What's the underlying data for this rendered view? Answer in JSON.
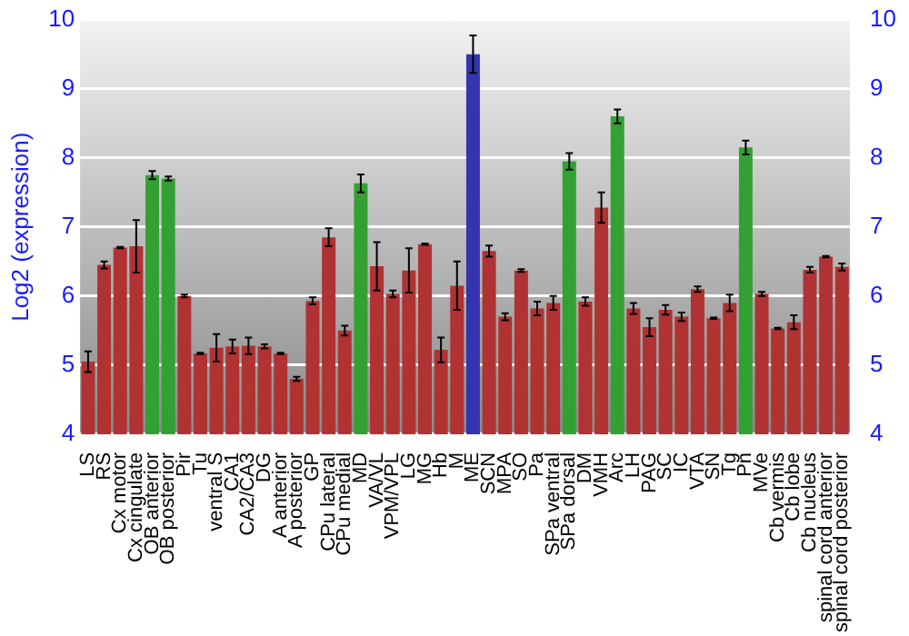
{
  "chart_data": {
    "type": "bar",
    "ylabel": "Log2 (expression)",
    "categories": [
      "LS",
      "RS",
      "Cx motor",
      "Cx cingulate",
      "OB anterior",
      "OB posterior",
      "Pir",
      "Tu",
      "ventral S",
      "CA1",
      "CA2/CA3",
      "DG",
      "A anterior",
      "A posterior",
      "GP",
      "CPu lateral",
      "CPu medial",
      "MD",
      "VA/VL",
      "VPM/VPL",
      "LG",
      "MG",
      "Hb",
      "M",
      "ME",
      "SCN",
      "MPA",
      "SO",
      "Pa",
      "SPa ventral",
      "SPa dorsal",
      "DM",
      "VMH",
      "Arc",
      "LH",
      "PAG",
      "SC",
      "IC",
      "VTA",
      "SN",
      "Tg",
      "Pn",
      "MVe",
      "Cb vermis",
      "Cb lobe",
      "Cb nucleus",
      "spinal cord anterior",
      "spinal cord posterior"
    ],
    "values": [
      5.05,
      6.45,
      6.7,
      6.72,
      7.75,
      7.7,
      6.0,
      5.17,
      5.25,
      5.27,
      5.28,
      5.27,
      5.17,
      4.8,
      5.93,
      6.85,
      5.5,
      7.63,
      6.43,
      6.03,
      6.37,
      6.75,
      5.22,
      6.15,
      9.5,
      6.65,
      5.7,
      6.37,
      5.82,
      5.9,
      7.95,
      5.92,
      7.28,
      8.6,
      5.82,
      5.55,
      5.8,
      5.7,
      6.1,
      5.68,
      5.9,
      8.15,
      6.03,
      5.53,
      5.62,
      6.38,
      6.57,
      6.42
    ],
    "errors": [
      0.15,
      0.05,
      0.01,
      0.38,
      0.06,
      0.03,
      0.02,
      0.01,
      0.2,
      0.1,
      0.12,
      0.03,
      0.01,
      0.03,
      0.05,
      0.13,
      0.07,
      0.13,
      0.35,
      0.05,
      0.32,
      0.01,
      0.18,
      0.35,
      0.27,
      0.08,
      0.05,
      0.02,
      0.1,
      0.1,
      0.12,
      0.06,
      0.22,
      0.1,
      0.08,
      0.13,
      0.07,
      0.06,
      0.04,
      0.01,
      0.12,
      0.1,
      0.03,
      0.01,
      0.1,
      0.04,
      0.01,
      0.05
    ],
    "colors": [
      "#b03232",
      "#b03232",
      "#b03232",
      "#b03232",
      "#34a034",
      "#34a034",
      "#b03232",
      "#b03232",
      "#b03232",
      "#b03232",
      "#b03232",
      "#b03232",
      "#b03232",
      "#b03232",
      "#b03232",
      "#b03232",
      "#b03232",
      "#34a034",
      "#b03232",
      "#b03232",
      "#b03232",
      "#b03232",
      "#b03232",
      "#b03232",
      "#3434b0",
      "#b03232",
      "#b03232",
      "#b03232",
      "#b03232",
      "#b03232",
      "#34a034",
      "#b03232",
      "#b03232",
      "#34a034",
      "#b03232",
      "#b03232",
      "#b03232",
      "#b03232",
      "#b03232",
      "#b03232",
      "#b03232",
      "#34a034",
      "#b03232",
      "#b03232",
      "#b03232",
      "#b03232",
      "#b03232",
      "#b03232"
    ],
    "ylim": [
      4,
      10
    ],
    "yticks": [
      4,
      5,
      6,
      7,
      8,
      9,
      10
    ],
    "y2lim": [
      4,
      10
    ],
    "y2ticks": [
      4,
      5,
      6,
      7,
      8,
      9,
      10
    ],
    "grid": "y"
  }
}
